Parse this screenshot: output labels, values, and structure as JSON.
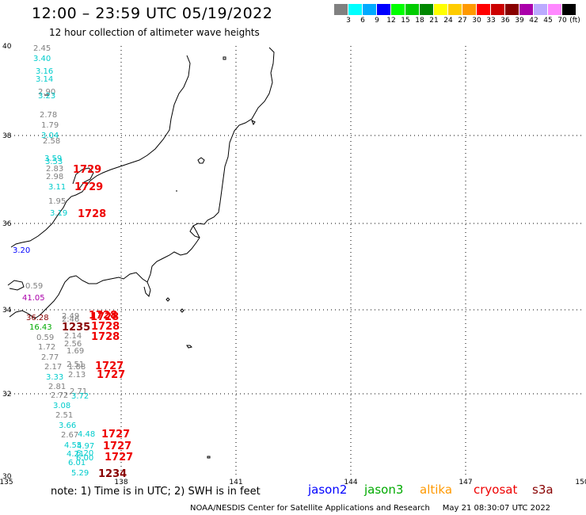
{
  "title": "12:00 – 23:59 UTC 05/19/2022",
  "subtitle": "12 hour collection of altimeter wave heights",
  "scale": {
    "unit": "(ft)",
    "colors": [
      "#808080",
      "#00ffff",
      "#00aaff",
      "#0000ff",
      "#00ff00",
      "#00cc00",
      "#008800",
      "#ffff00",
      "#ffcc00",
      "#ff9900",
      "#ff0000",
      "#cc0000",
      "#880000",
      "#aa00aa",
      "#bbaaff",
      "#ff88ff",
      "#000000"
    ],
    "labels": [
      "3",
      "6",
      "9",
      "12",
      "15",
      "18",
      "21",
      "24",
      "27",
      "30",
      "33",
      "36",
      "39",
      "42",
      "45",
      "70"
    ]
  },
  "axes": {
    "lat_labels": [
      "40",
      "38",
      "36",
      "34",
      "32",
      "30"
    ],
    "lon_labels": [
      "135",
      "138",
      "141",
      "144",
      "147",
      "150"
    ]
  },
  "observations": [
    {
      "text": "2.45",
      "color": "#808080"
    },
    {
      "text": "3.40",
      "color": "#00cccc"
    },
    {
      "text": "3.16",
      "color": "#00cccc"
    },
    {
      "text": "3.14",
      "color": "#00cccc"
    },
    {
      "text": "2.90",
      "color": "#808080"
    },
    {
      "text": "3.23",
      "color": "#00cccc"
    },
    {
      "text": "2.78",
      "color": "#808080"
    },
    {
      "text": "1.79",
      "color": "#808080"
    },
    {
      "text": "3.04",
      "color": "#00cccc"
    },
    {
      "text": "2.58",
      "color": "#808080"
    },
    {
      "text": "3.59",
      "color": "#00cccc"
    },
    {
      "text": "3.53",
      "color": "#00cccc"
    },
    {
      "text": "2.83",
      "color": "#808080"
    },
    {
      "text": "2.98",
      "color": "#808080"
    },
    {
      "text": "3.11",
      "color": "#00cccc"
    },
    {
      "text": "1.95",
      "color": "#808080"
    },
    {
      "text": "3.19",
      "color": "#00cccc"
    },
    {
      "text": "3.20",
      "color": "#0000ff"
    },
    {
      "text": "0.59",
      "color": "#808080"
    },
    {
      "text": "41.05",
      "color": "#aa00aa"
    },
    {
      "text": "36.28",
      "color": "#880000"
    },
    {
      "text": "2.49",
      "color": "#808080"
    },
    {
      "text": "2.46",
      "color": "#808080"
    },
    {
      "text": "16.43",
      "color": "#00aa00"
    },
    {
      "text": "0.59",
      "color": "#808080"
    },
    {
      "text": "2.14",
      "color": "#808080"
    },
    {
      "text": "1.72",
      "color": "#808080"
    },
    {
      "text": "2.56",
      "color": "#808080"
    },
    {
      "text": "1.69",
      "color": "#808080"
    },
    {
      "text": "2.77",
      "color": "#808080"
    },
    {
      "text": "2.17",
      "color": "#808080"
    },
    {
      "text": "2.51",
      "color": "#808080"
    },
    {
      "text": "1.88",
      "color": "#808080"
    },
    {
      "text": "2.13",
      "color": "#808080"
    },
    {
      "text": "3.33",
      "color": "#00cccc"
    },
    {
      "text": "2.81",
      "color": "#808080"
    },
    {
      "text": "2.71",
      "color": "#808080"
    },
    {
      "text": "2.72",
      "color": "#808080"
    },
    {
      "text": "3.72",
      "color": "#00cccc"
    },
    {
      "text": "3.08",
      "color": "#00cccc"
    },
    {
      "text": "2.51",
      "color": "#808080"
    },
    {
      "text": "3.66",
      "color": "#00cccc"
    },
    {
      "text": "2.67",
      "color": "#808080"
    },
    {
      "text": "4.48",
      "color": "#00cccc"
    },
    {
      "text": "4.55",
      "color": "#00cccc"
    },
    {
      "text": "4.97",
      "color": "#00cccc"
    },
    {
      "text": "4.21",
      "color": "#00cccc"
    },
    {
      "text": "6.20",
      "color": "#00cccc"
    },
    {
      "text": "6.00",
      "color": "#00cccc"
    },
    {
      "text": "6.01",
      "color": "#00cccc"
    },
    {
      "text": "5.29",
      "color": "#00cccc"
    },
    {
      "text": "4.30",
      "color": "#00cccc"
    }
  ],
  "times": [
    {
      "text": "1729",
      "color": "#ee0000"
    },
    {
      "text": "1729",
      "color": "#ee0000"
    },
    {
      "text": "1728",
      "color": "#ee0000"
    },
    {
      "text": "1728",
      "color": "#ee0000"
    },
    {
      "text": "1728",
      "color": "#ee0000"
    },
    {
      "text": "1235",
      "color": "#880000"
    },
    {
      "text": "1728",
      "color": "#ee0000"
    },
    {
      "text": "1728",
      "color": "#ee0000"
    },
    {
      "text": "1727",
      "color": "#ee0000"
    },
    {
      "text": "1727",
      "color": "#ee0000"
    },
    {
      "text": "1727",
      "color": "#ee0000"
    },
    {
      "text": "1727",
      "color": "#ee0000"
    },
    {
      "text": "1727",
      "color": "#ee0000"
    },
    {
      "text": "1234",
      "color": "#880000"
    }
  ],
  "note": "note:  1) Time is in UTC; 2) SWH is in feet",
  "satellites": [
    {
      "name": "jason2",
      "color": "#0000ff"
    },
    {
      "name": "jason3",
      "color": "#00aa00"
    },
    {
      "name": "altika",
      "color": "#ff9900"
    },
    {
      "name": "cryosat",
      "color": "#ee0000"
    },
    {
      "name": "s3a",
      "color": "#880000"
    }
  ],
  "credit": "NOAA/NESDIS Center for Satellite Applications and Research     May 21 08:30:07 UTC 2022"
}
